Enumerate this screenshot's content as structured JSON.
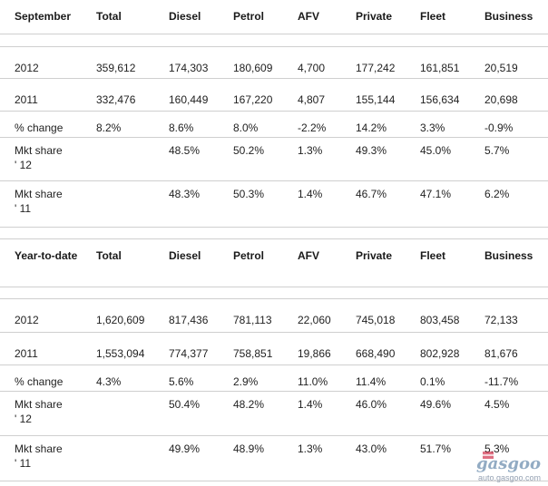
{
  "sections": [
    {
      "header": [
        "September",
        "Total",
        "Diesel",
        "Petrol",
        "AFV",
        "Private",
        "Fleet",
        "Business"
      ],
      "rows": [
        [
          "2012",
          "359,612",
          "174,303",
          "180,609",
          "4,700",
          "177,242",
          "161,851",
          "20,519"
        ],
        [
          "2011",
          "332,476",
          "160,449",
          "167,220",
          "4,807",
          "155,144",
          "156,634",
          "20,698"
        ],
        [
          "% change",
          "8.2%",
          "8.6%",
          "8.0%",
          "-2.2%",
          "14.2%",
          "3.3%",
          "-0.9%"
        ],
        [
          "Mkt share ' 12",
          "",
          "48.5%",
          "50.2%",
          "1.3%",
          "49.3%",
          "45.0%",
          "5.7%"
        ],
        [
          "Mkt share ' 11",
          "",
          "48.3%",
          "50.3%",
          "1.4%",
          "46.7%",
          "47.1%",
          "6.2%"
        ]
      ]
    },
    {
      "header": [
        "Year-to-date",
        "Total",
        "Diesel",
        "Petrol",
        "AFV",
        "Private",
        "Fleet",
        "Business"
      ],
      "rows": [
        [
          "2012",
          "1,620,609",
          "817,436",
          "781,113",
          "22,060",
          "745,018",
          "803,458",
          "72,133"
        ],
        [
          "2011",
          "1,553,094",
          "774,377",
          "758,851",
          "19,866",
          "668,490",
          "802,928",
          "81,676"
        ],
        [
          "% change",
          "4.3%",
          "5.6%",
          "2.9%",
          "11.0%",
          "11.4%",
          "0.1%",
          "-11.7%"
        ],
        [
          "Mkt share ' 12",
          "",
          "50.4%",
          "48.2%",
          "1.4%",
          "46.0%",
          "49.6%",
          "4.5%"
        ],
        [
          "Mkt share ' 11",
          "",
          "49.9%",
          "48.9%",
          "1.3%",
          "43.0%",
          "51.7%",
          "5.3%"
        ]
      ]
    }
  ],
  "watermark": {
    "logo": "gasgoo",
    "url": "auto.gasgoo.com"
  }
}
